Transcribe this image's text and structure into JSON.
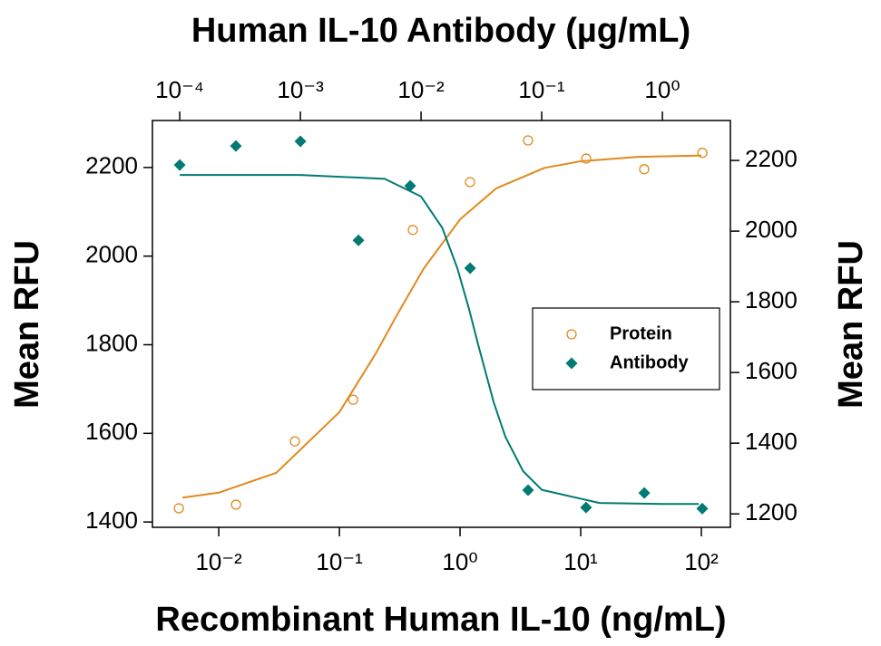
{
  "chart_data": {
    "type": "scatter",
    "title": "Human IL-10 Antibody (µg/mL)",
    "xlabel": "Recombinant Human IL-10 (ng/mL)",
    "ylabel": "Mean RFU",
    "y2label": "Mean RFU",
    "xscale": "log",
    "x2scale": "log",
    "xlim": [
      0.00282,
      174
    ],
    "xticks": [
      {
        "value": 0.01,
        "label": "10⁻²"
      },
      {
        "value": 0.1,
        "label": "10⁻¹"
      },
      {
        "value": 1,
        "label": "10⁰"
      },
      {
        "value": 10,
        "label": "10¹"
      },
      {
        "value": 100,
        "label": "10²"
      }
    ],
    "x2lim": [
      5.94e-05,
      3.66
    ],
    "x2ticks": [
      {
        "value": 0.0001,
        "label": "10⁻⁴"
      },
      {
        "value": 0.001,
        "label": "10⁻³"
      },
      {
        "value": 0.01,
        "label": "10⁻²"
      },
      {
        "value": 0.1,
        "label": "10⁻¹"
      },
      {
        "value": 1,
        "label": "10⁰"
      }
    ],
    "ylim": [
      1388,
      2306
    ],
    "yticks": [
      1400,
      1600,
      1800,
      2000,
      2200
    ],
    "y2lim": [
      1162,
      2313
    ],
    "y2ticks": [
      1200,
      1400,
      1600,
      1800,
      2000,
      2200
    ],
    "legend": "right",
    "series": [
      {
        "name": "Protein",
        "color": "#e08a1e",
        "marker": "open-circle",
        "axis": "y",
        "xaxis": "x",
        "x": [
          0.00467,
          0.0139,
          0.0428,
          0.13,
          0.406,
          1.21,
          3.66,
          11.1,
          33.6,
          102
        ],
        "values": [
          1431,
          1439,
          1582,
          1676,
          2059,
          2167,
          2261,
          2220,
          2196,
          2233
        ],
        "fit": {
          "x": [
            0.005,
            0.01,
            0.03,
            0.1,
            0.2,
            0.3,
            0.5,
            1,
            2,
            5,
            10,
            30,
            100
          ],
          "values": [
            1455,
            1466,
            1511,
            1648,
            1780,
            1867,
            1972,
            2083,
            2153,
            2199,
            2214,
            2224,
            2227
          ]
        }
      },
      {
        "name": "Antibody",
        "color": "#007a73",
        "marker": "diamond",
        "axis": "y2",
        "xaxis": "x2",
        "x": [
          0.0001,
          0.000292,
          0.001,
          0.00303,
          0.00813,
          0.0255,
          0.0771,
          0.233,
          0.708,
          2.14
        ],
        "values": [
          2187,
          2241,
          2254,
          1974,
          2128,
          1895,
          1267,
          1218,
          1259,
          1215
        ],
        "fit": {
          "x": [
            0.0001,
            0.001,
            0.005,
            0.01,
            0.015,
            0.02,
            0.025,
            0.03,
            0.04,
            0.05,
            0.07,
            0.1,
            0.3,
            1,
            2
          ],
          "values": [
            2159,
            2159,
            2148,
            2098,
            2009,
            1895,
            1779,
            1674,
            1516,
            1418,
            1321,
            1268,
            1231,
            1228,
            1228
          ]
        }
      }
    ]
  }
}
